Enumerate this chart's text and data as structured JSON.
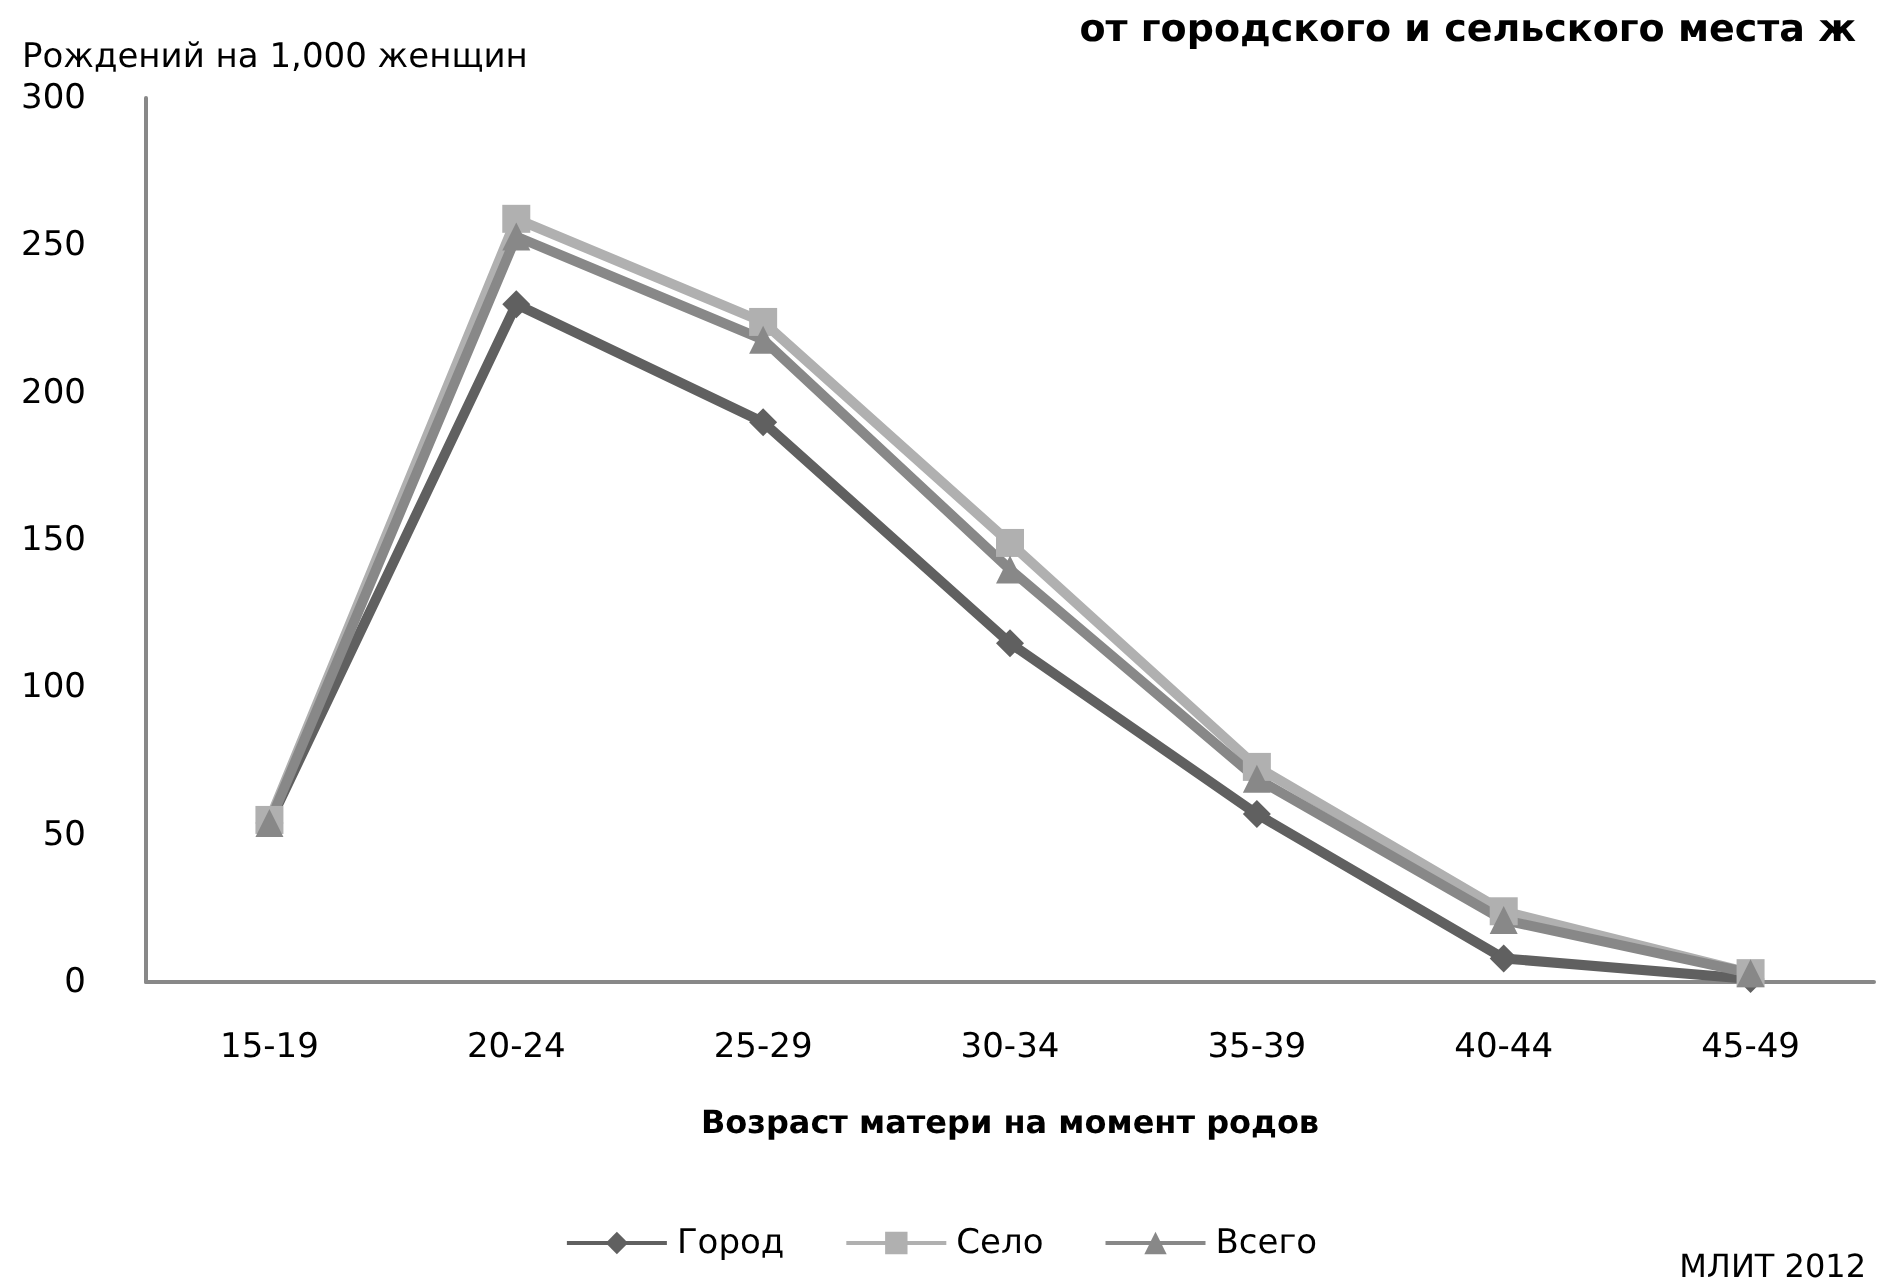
{
  "chart_data": {
    "type": "line",
    "title": "от городского и сельского места ж",
    "ylabel": "Рождений на 1,000 женщин",
    "xlabel": "Возраст матери на момент родов",
    "categories": [
      "15-19",
      "20-24",
      "25-29",
      "30-34",
      "35-39",
      "40-44",
      "45-49"
    ],
    "series": [
      {
        "name": "Город",
        "color": "#606060",
        "marker": "diamond",
        "values": [
          54,
          230,
          190,
          115,
          57,
          8,
          1
        ]
      },
      {
        "name": "Село",
        "color": "#b0b0b0",
        "marker": "square",
        "values": [
          55,
          259,
          224,
          149,
          73,
          24,
          3
        ]
      },
      {
        "name": "Всего",
        "color": "#888888",
        "marker": "triangle",
        "values": [
          54,
          253,
          218,
          140,
          69,
          21,
          3
        ]
      }
    ],
    "ylim": [
      0,
      300
    ],
    "yticks": [
      0,
      50,
      100,
      150,
      200,
      250,
      300
    ],
    "grid": false,
    "legend": "bottom",
    "line_style": "solid",
    "annotations": [
      "МЛИТ 2012"
    ]
  }
}
